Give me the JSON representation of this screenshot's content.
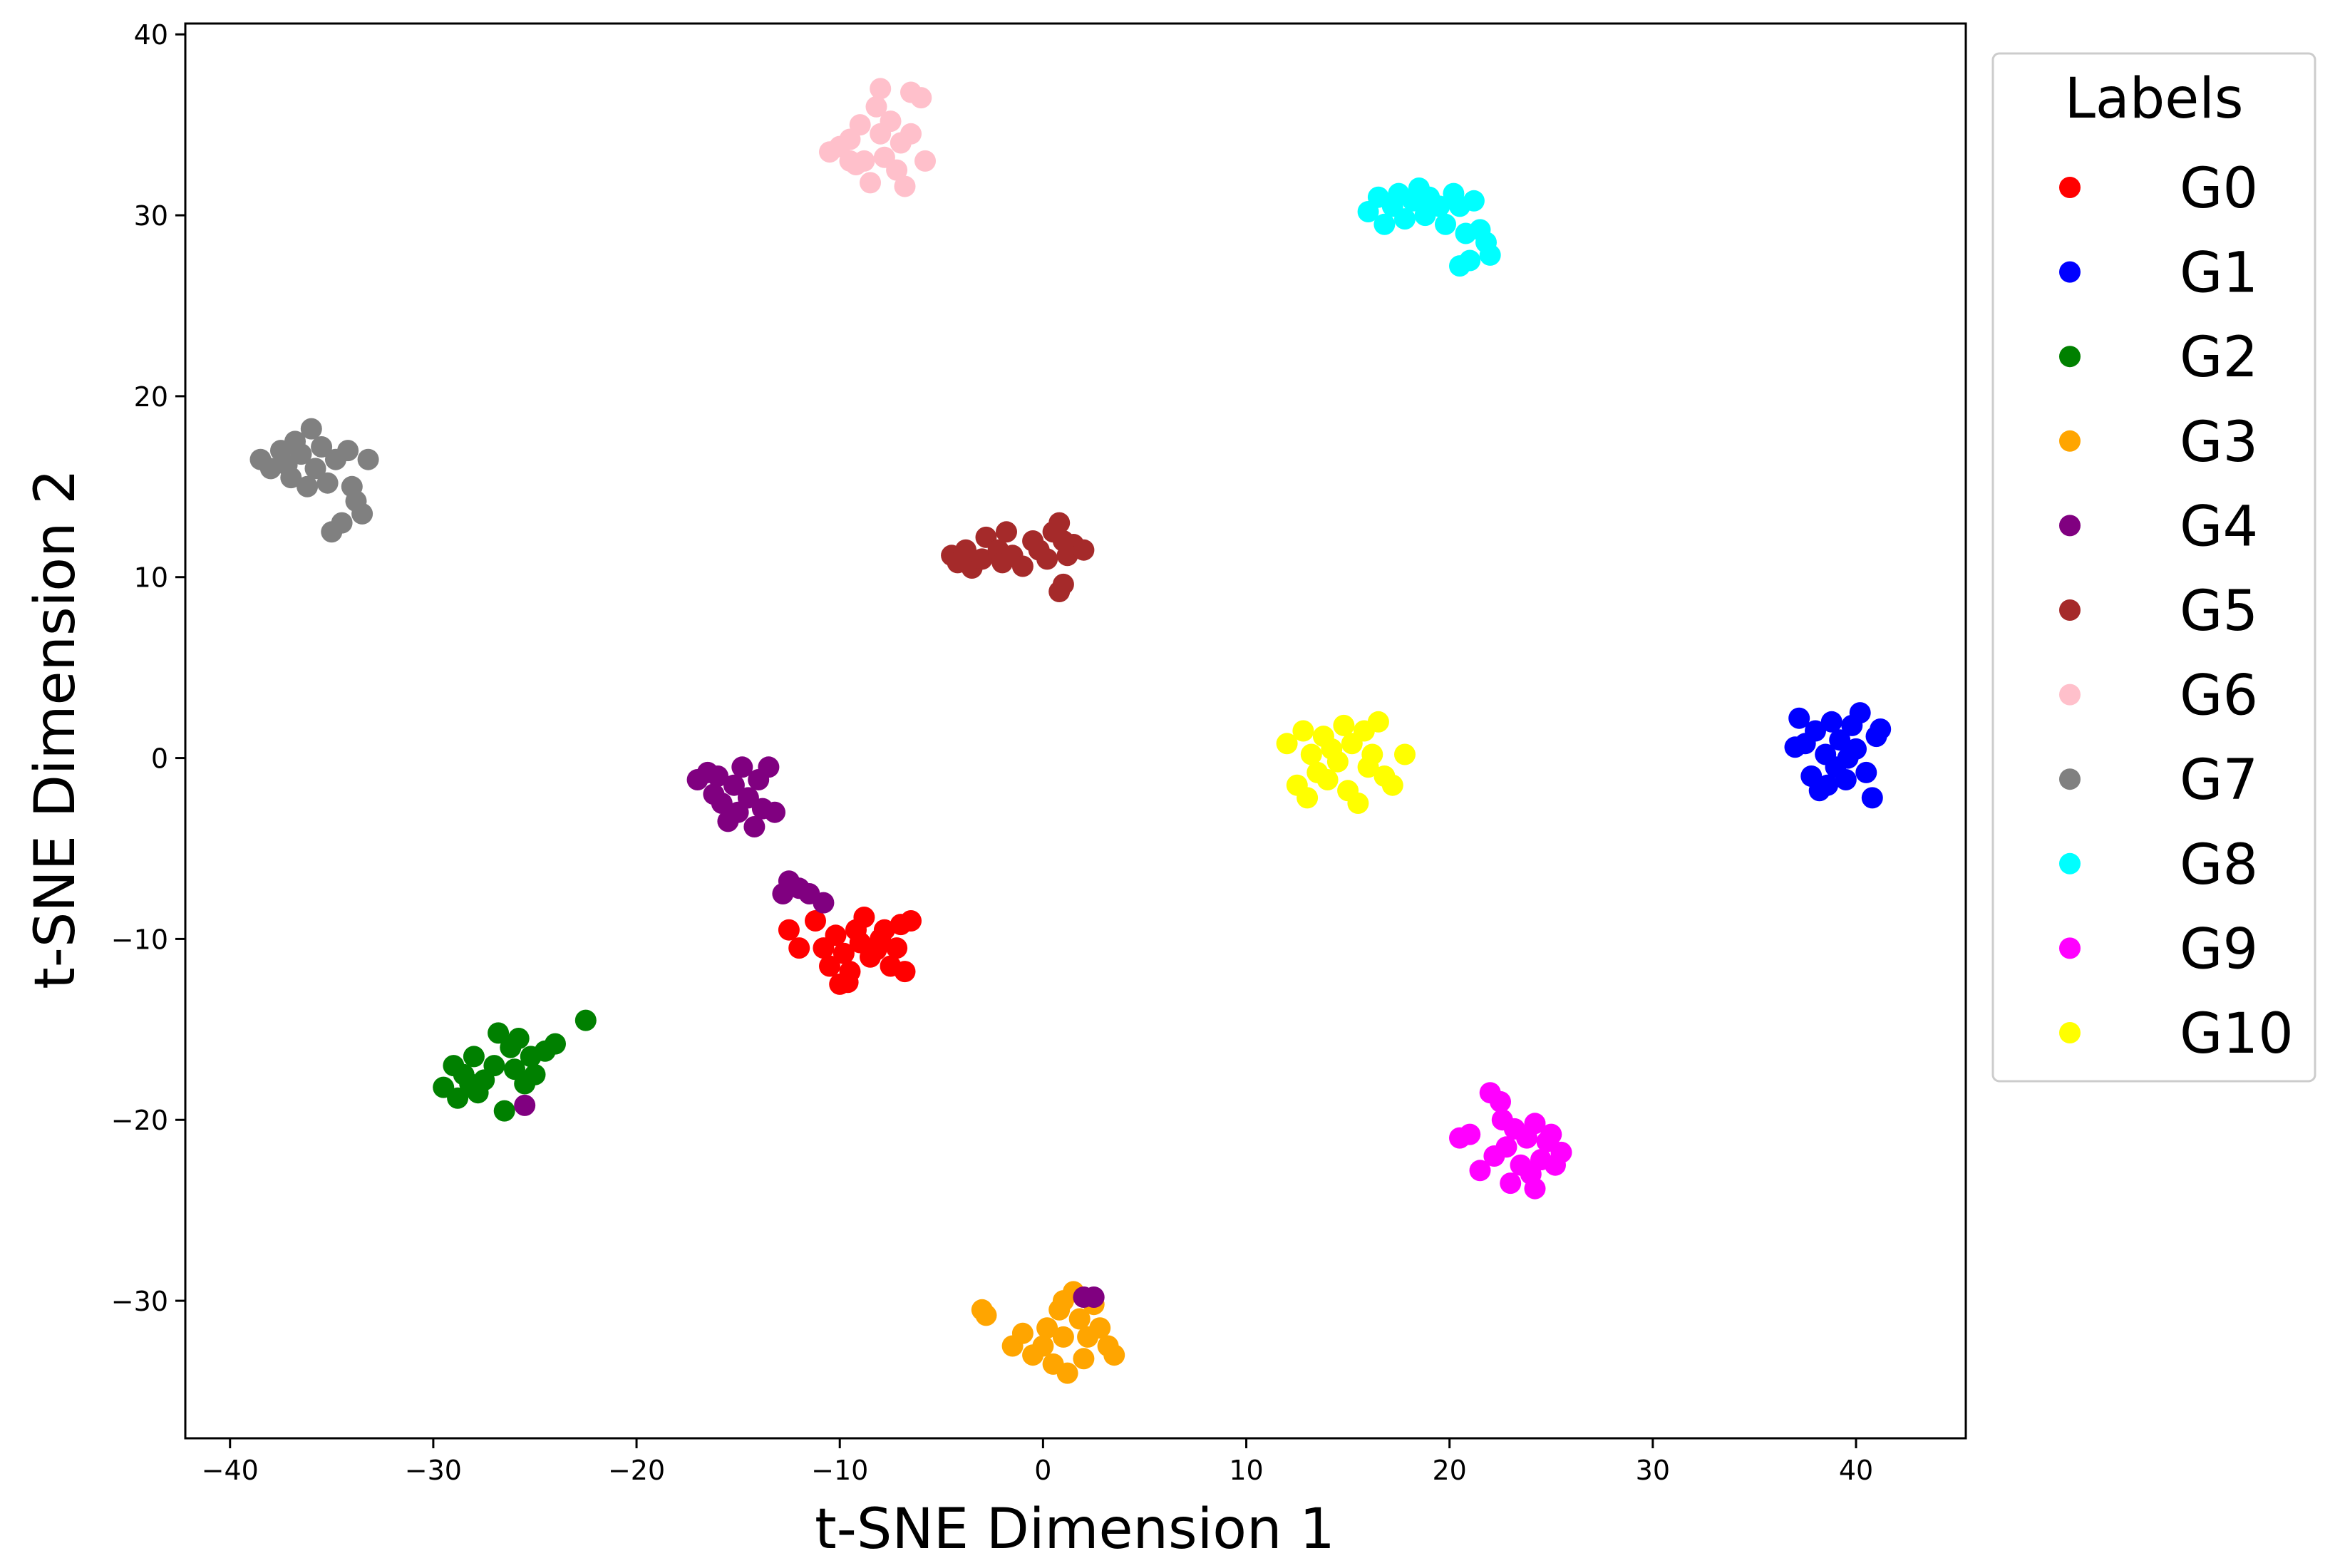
{
  "chart_data": {
    "type": "scatter",
    "title": "",
    "xlabel": "t-SNE Dimension 1",
    "ylabel": "t-SNE Dimension 2",
    "xlim": [
      -42.2,
      45.4
    ],
    "ylim": [
      -37.6,
      40.6
    ],
    "xticks": [
      -40,
      -30,
      -20,
      -10,
      0,
      10,
      20,
      30,
      40
    ],
    "yticks": [
      -30,
      -20,
      -10,
      0,
      10,
      20,
      30,
      40
    ],
    "xtick_labels": [
      "−40",
      "−30",
      "−20",
      "−10",
      "0",
      "10",
      "20",
      "30",
      "40"
    ],
    "ytick_labels": [
      "−30",
      "−20",
      "−10",
      "0",
      "10",
      "20",
      "30",
      "40"
    ],
    "grid": false,
    "legend": {
      "title": "Labels",
      "position": "outside-right-top"
    },
    "series": [
      {
        "name": "G0",
        "color": "#ff0000",
        "points": [
          [
            -12.5,
            -9.5
          ],
          [
            -12.0,
            -10.5
          ],
          [
            -11.2,
            -9.0
          ],
          [
            -10.8,
            -10.5
          ],
          [
            -10.5,
            -11.5
          ],
          [
            -10.2,
            -9.8
          ],
          [
            -10.0,
            -12.5
          ],
          [
            -9.8,
            -10.8
          ],
          [
            -9.5,
            -11.8
          ],
          [
            -9.2,
            -9.5
          ],
          [
            -9.0,
            -10.2
          ],
          [
            -8.8,
            -8.8
          ],
          [
            -8.5,
            -11.0
          ],
          [
            -8.0,
            -10.0
          ],
          [
            -7.8,
            -9.5
          ],
          [
            -7.5,
            -11.5
          ],
          [
            -7.2,
            -10.5
          ],
          [
            -7.0,
            -9.2
          ],
          [
            -6.8,
            -11.8
          ],
          [
            -6.5,
            -9.0
          ],
          [
            -9.6,
            -12.4
          ],
          [
            -8.2,
            -10.6
          ]
        ]
      },
      {
        "name": "G1",
        "color": "#0000ff",
        "points": [
          [
            37.2,
            2.2
          ],
          [
            37.5,
            0.8
          ],
          [
            37.8,
            -1.0
          ],
          [
            38.0,
            1.5
          ],
          [
            38.2,
            -1.8
          ],
          [
            38.5,
            0.2
          ],
          [
            38.8,
            2.0
          ],
          [
            39.0,
            -0.5
          ],
          [
            39.2,
            1.0
          ],
          [
            39.5,
            -1.2
          ],
          [
            39.8,
            1.8
          ],
          [
            40.0,
            0.5
          ],
          [
            40.2,
            2.5
          ],
          [
            40.5,
            -0.8
          ],
          [
            40.8,
            -2.2
          ],
          [
            41.0,
            1.2
          ],
          [
            41.2,
            1.6
          ],
          [
            37.0,
            0.6
          ],
          [
            38.6,
            -1.5
          ],
          [
            39.6,
            0.0
          ]
        ]
      },
      {
        "name": "G2",
        "color": "#008000",
        "points": [
          [
            -29.5,
            -18.2
          ],
          [
            -29.0,
            -17.0
          ],
          [
            -28.8,
            -18.8
          ],
          [
            -28.5,
            -17.5
          ],
          [
            -28.0,
            -16.5
          ],
          [
            -27.8,
            -18.5
          ],
          [
            -27.5,
            -17.8
          ],
          [
            -27.0,
            -17.0
          ],
          [
            -26.8,
            -15.2
          ],
          [
            -26.5,
            -19.5
          ],
          [
            -26.2,
            -16.0
          ],
          [
            -26.0,
            -17.2
          ],
          [
            -25.8,
            -15.5
          ],
          [
            -25.5,
            -18.0
          ],
          [
            -25.2,
            -16.5
          ],
          [
            -25.0,
            -17.5
          ],
          [
            -24.5,
            -16.2
          ],
          [
            -24.0,
            -15.8
          ],
          [
            -22.5,
            -14.5
          ],
          [
            -28.2,
            -18.0
          ]
        ]
      },
      {
        "name": "G3",
        "color": "#ffa500",
        "points": [
          [
            -3.0,
            -30.5
          ],
          [
            -2.8,
            -30.8
          ],
          [
            -1.5,
            -32.5
          ],
          [
            -1.0,
            -31.8
          ],
          [
            -0.5,
            -33.0
          ],
          [
            0.0,
            -32.5
          ],
          [
            0.2,
            -31.5
          ],
          [
            0.5,
            -33.5
          ],
          [
            0.8,
            -30.5
          ],
          [
            1.0,
            -32.0
          ],
          [
            1.2,
            -34.0
          ],
          [
            1.5,
            -29.5
          ],
          [
            1.8,
            -31.0
          ],
          [
            2.0,
            -33.2
          ],
          [
            2.2,
            -32.0
          ],
          [
            2.5,
            -30.2
          ],
          [
            2.8,
            -31.5
          ],
          [
            3.2,
            -32.5
          ],
          [
            3.5,
            -33.0
          ],
          [
            1.0,
            -30.0
          ]
        ]
      },
      {
        "name": "G4",
        "color": "#800080",
        "points": [
          [
            -17.0,
            -1.2
          ],
          [
            -16.5,
            -0.8
          ],
          [
            -16.2,
            -2.0
          ],
          [
            -16.0,
            -1.0
          ],
          [
            -15.8,
            -2.5
          ],
          [
            -15.5,
            -3.5
          ],
          [
            -15.2,
            -1.5
          ],
          [
            -15.0,
            -3.0
          ],
          [
            -14.8,
            -0.5
          ],
          [
            -14.5,
            -2.2
          ],
          [
            -14.2,
            -3.8
          ],
          [
            -14.0,
            -1.2
          ],
          [
            -13.8,
            -2.8
          ],
          [
            -13.5,
            -0.5
          ],
          [
            -13.2,
            -3.0
          ],
          [
            -12.8,
            -7.5
          ],
          [
            -12.5,
            -6.8
          ],
          [
            -12.0,
            -7.2
          ],
          [
            -11.5,
            -7.5
          ],
          [
            -10.8,
            -8.0
          ],
          [
            -25.5,
            -19.2
          ],
          [
            2.0,
            -29.8
          ],
          [
            2.5,
            -29.8
          ]
        ]
      },
      {
        "name": "G5",
        "color": "#a52a2a",
        "points": [
          [
            -4.5,
            11.2
          ],
          [
            -4.2,
            10.8
          ],
          [
            -3.8,
            11.5
          ],
          [
            -3.5,
            10.5
          ],
          [
            -3.0,
            11.0
          ],
          [
            -2.8,
            12.2
          ],
          [
            -2.2,
            11.5
          ],
          [
            -2.0,
            10.8
          ],
          [
            -1.8,
            12.5
          ],
          [
            -1.5,
            11.2
          ],
          [
            -1.0,
            10.6
          ],
          [
            -0.5,
            12.0
          ],
          [
            -0.2,
            11.5
          ],
          [
            0.2,
            11.0
          ],
          [
            0.5,
            12.5
          ],
          [
            0.8,
            13.0
          ],
          [
            1.0,
            12.0
          ],
          [
            1.2,
            11.2
          ],
          [
            1.5,
            11.8
          ],
          [
            0.8,
            9.2
          ],
          [
            1.0,
            9.6
          ],
          [
            2.0,
            11.5
          ]
        ]
      },
      {
        "name": "G6",
        "color": "#ffc0cb",
        "points": [
          [
            -10.5,
            33.5
          ],
          [
            -10.0,
            33.8
          ],
          [
            -9.5,
            34.2
          ],
          [
            -9.2,
            32.8
          ],
          [
            -9.0,
            35.0
          ],
          [
            -8.8,
            33.0
          ],
          [
            -8.5,
            31.8
          ],
          [
            -8.2,
            36.0
          ],
          [
            -8.0,
            34.5
          ],
          [
            -7.8,
            33.2
          ],
          [
            -7.5,
            35.2
          ],
          [
            -7.2,
            32.5
          ],
          [
            -7.0,
            34.0
          ],
          [
            -6.8,
            31.6
          ],
          [
            -6.5,
            36.8
          ],
          [
            -6.0,
            36.5
          ],
          [
            -5.8,
            33.0
          ],
          [
            -6.5,
            34.5
          ],
          [
            -8.0,
            37.0
          ],
          [
            -9.5,
            33.0
          ]
        ]
      },
      {
        "name": "G7",
        "color": "#808080",
        "points": [
          [
            -38.5,
            16.5
          ],
          [
            -38.0,
            16.0
          ],
          [
            -37.5,
            17.0
          ],
          [
            -37.2,
            16.2
          ],
          [
            -37.0,
            15.5
          ],
          [
            -36.8,
            17.5
          ],
          [
            -36.5,
            16.8
          ],
          [
            -36.2,
            15.0
          ],
          [
            -36.0,
            18.2
          ],
          [
            -35.8,
            16.0
          ],
          [
            -35.5,
            17.2
          ],
          [
            -35.2,
            15.2
          ],
          [
            -35.0,
            12.5
          ],
          [
            -34.8,
            16.5
          ],
          [
            -34.5,
            13.0
          ],
          [
            -34.2,
            17.0
          ],
          [
            -34.0,
            15.0
          ],
          [
            -33.8,
            14.2
          ],
          [
            -33.5,
            13.5
          ],
          [
            -33.2,
            16.5
          ]
        ]
      },
      {
        "name": "G8",
        "color": "#00ffff",
        "points": [
          [
            16.0,
            30.2
          ],
          [
            16.5,
            31.0
          ],
          [
            16.8,
            29.5
          ],
          [
            17.2,
            30.5
          ],
          [
            17.5,
            31.2
          ],
          [
            17.8,
            29.8
          ],
          [
            18.2,
            30.8
          ],
          [
            18.5,
            31.5
          ],
          [
            18.8,
            30.0
          ],
          [
            19.0,
            31.0
          ],
          [
            19.5,
            30.5
          ],
          [
            19.8,
            29.5
          ],
          [
            20.2,
            31.2
          ],
          [
            20.5,
            30.5
          ],
          [
            20.8,
            29.0
          ],
          [
            21.2,
            30.8
          ],
          [
            21.5,
            29.2
          ],
          [
            21.8,
            28.5
          ],
          [
            22.0,
            27.8
          ],
          [
            20.5,
            27.2
          ],
          [
            21.0,
            27.5
          ]
        ]
      },
      {
        "name": "G9",
        "color": "#ff00ff",
        "points": [
          [
            20.5,
            -21.0
          ],
          [
            21.0,
            -20.8
          ],
          [
            21.5,
            -22.8
          ],
          [
            22.0,
            -18.5
          ],
          [
            22.2,
            -22.0
          ],
          [
            22.5,
            -19.0
          ],
          [
            22.8,
            -21.5
          ],
          [
            23.0,
            -23.5
          ],
          [
            23.2,
            -20.5
          ],
          [
            23.5,
            -22.5
          ],
          [
            23.8,
            -21.0
          ],
          [
            24.0,
            -23.0
          ],
          [
            24.2,
            -20.2
          ],
          [
            24.5,
            -22.2
          ],
          [
            24.8,
            -21.2
          ],
          [
            25.0,
            -20.8
          ],
          [
            25.2,
            -22.5
          ],
          [
            25.5,
            -21.8
          ],
          [
            24.2,
            -23.8
          ],
          [
            22.6,
            -20.0
          ]
        ]
      },
      {
        "name": "G10",
        "color": "#ffff00",
        "points": [
          [
            12.0,
            0.8
          ],
          [
            12.5,
            -1.5
          ],
          [
            12.8,
            1.5
          ],
          [
            13.0,
            -2.2
          ],
          [
            13.2,
            0.2
          ],
          [
            13.5,
            -0.8
          ],
          [
            13.8,
            1.2
          ],
          [
            14.0,
            -1.2
          ],
          [
            14.2,
            0.5
          ],
          [
            14.5,
            -0.2
          ],
          [
            14.8,
            1.8
          ],
          [
            15.0,
            -1.8
          ],
          [
            15.2,
            0.8
          ],
          [
            15.5,
            -2.5
          ],
          [
            15.8,
            1.5
          ],
          [
            16.0,
            -0.5
          ],
          [
            16.2,
            0.2
          ],
          [
            16.5,
            2.0
          ],
          [
            16.8,
            -1.0
          ],
          [
            17.2,
            -1.5
          ],
          [
            17.8,
            0.2
          ]
        ]
      }
    ]
  }
}
